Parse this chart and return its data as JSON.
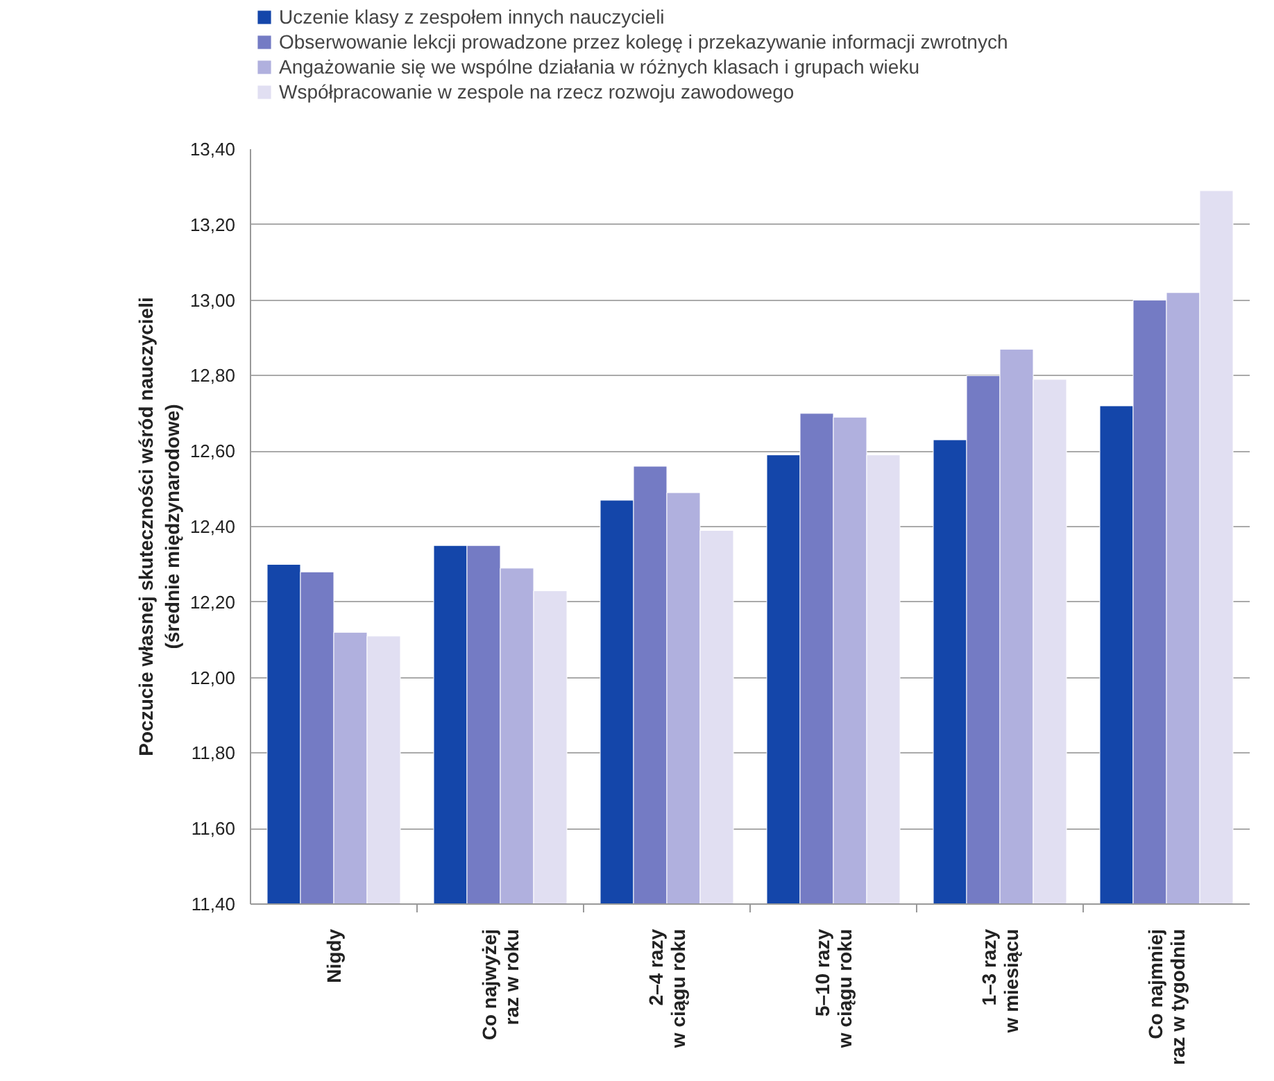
{
  "chart_data": {
    "type": "bar",
    "ylabel": "Poczucie własnej skuteczności wśród nauczycieli\n(średnie międzynarodowe)",
    "categories": [
      "Nigdy",
      "Co najwyżej\nraz w roku",
      "2–4 razy\nw ciągu roku",
      "5–10 razy\nw ciągu roku",
      "1–3 razy\nw miesiącu",
      "Co najmniej\nraz w tygodniu"
    ],
    "series": [
      {
        "name": "Uczenie klasy z zespołem innych nauczycieli",
        "color": "#1446aa",
        "values": [
          12.3,
          12.35,
          12.47,
          12.59,
          12.63,
          12.72
        ]
      },
      {
        "name": "Obserwowanie lekcji prowadzone przez kolegę i przekazywanie informacji zwrotnych",
        "color": "#747bc4",
        "values": [
          12.28,
          12.35,
          12.56,
          12.7,
          12.8,
          13.0
        ]
      },
      {
        "name": "Angażowanie się we wspólne działania w różnych klasach i grupach wieku",
        "color": "#b0b0de",
        "values": [
          12.12,
          12.29,
          12.49,
          12.69,
          12.87,
          13.02
        ]
      },
      {
        "name": "Współpracowanie w zespole na rzecz rozwoju zawodowego",
        "color": "#e1dff2",
        "values": [
          12.11,
          12.23,
          12.39,
          12.59,
          12.79,
          13.29
        ]
      }
    ],
    "ylim": [
      11.4,
      13.4
    ],
    "yticks": [
      {
        "value": 11.4,
        "label": "11,40"
      },
      {
        "value": 11.6,
        "label": "11,60"
      },
      {
        "value": 11.8,
        "label": "11,80"
      },
      {
        "value": 12.0,
        "label": "12,00"
      },
      {
        "value": 12.2,
        "label": "12,20"
      },
      {
        "value": 12.4,
        "label": "12,40"
      },
      {
        "value": 12.6,
        "label": "12,60"
      },
      {
        "value": 12.8,
        "label": "12,80"
      },
      {
        "value": 13.0,
        "label": "13,00"
      },
      {
        "value": 13.2,
        "label": "13,20"
      },
      {
        "value": 13.4,
        "label": "13,40"
      }
    ],
    "grid": "y",
    "legend": "top"
  }
}
